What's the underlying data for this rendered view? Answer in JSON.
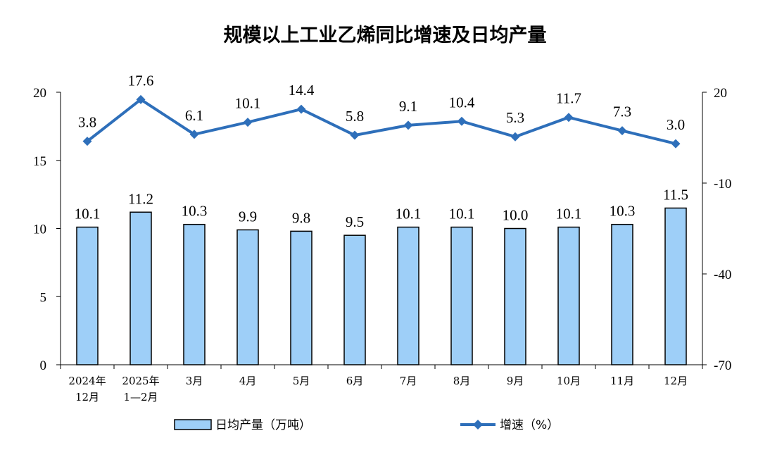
{
  "chart_data": {
    "type": "bar+line",
    "title": "规模以上工业乙烯同比增速及日均产量",
    "categories": [
      [
        "2024年",
        "12月"
      ],
      [
        "2025年",
        "1—2月"
      ],
      [
        "3月"
      ],
      [
        "4月"
      ],
      [
        "5月"
      ],
      [
        "6月"
      ],
      [
        "7月"
      ],
      [
        "8月"
      ],
      [
        "9月"
      ],
      [
        "10月"
      ],
      [
        "11月"
      ],
      [
        "12月"
      ]
    ],
    "series": [
      {
        "name": "日均产量（万吨）",
        "type": "bar",
        "axis": "left",
        "values": [
          10.1,
          11.2,
          10.3,
          9.9,
          9.8,
          9.5,
          10.1,
          10.1,
          10.0,
          10.1,
          10.3,
          11.5
        ],
        "labels": [
          "10.1",
          "11.2",
          "10.3",
          "9.9",
          "9.8",
          "9.5",
          "10.1",
          "10.1",
          "10.0",
          "10.1",
          "10.3",
          "11.5"
        ]
      },
      {
        "name": "增速（%）",
        "type": "line",
        "axis": "right",
        "values": [
          3.8,
          17.6,
          6.1,
          10.1,
          14.4,
          5.8,
          9.1,
          10.4,
          5.3,
          11.7,
          7.3,
          3.0
        ],
        "labels": [
          "3.8",
          "17.6",
          "6.1",
          "10.1",
          "14.4",
          "5.8",
          "9.1",
          "10.4",
          "5.3",
          "11.7",
          "7.3",
          "3.0"
        ]
      }
    ],
    "y_left": {
      "min": 0,
      "max": 20,
      "ticks": [
        "0",
        "5",
        "10",
        "15",
        "20"
      ]
    },
    "y_right": {
      "min": -70,
      "max": 20,
      "ticks": [
        "-70",
        "-40",
        "-10",
        "20"
      ]
    },
    "grid": false,
    "legend_position": "bottom",
    "colors": {
      "bar_fill": "#9ecff8",
      "bar_stroke": "#000000",
      "line": "#2e6fba"
    }
  }
}
